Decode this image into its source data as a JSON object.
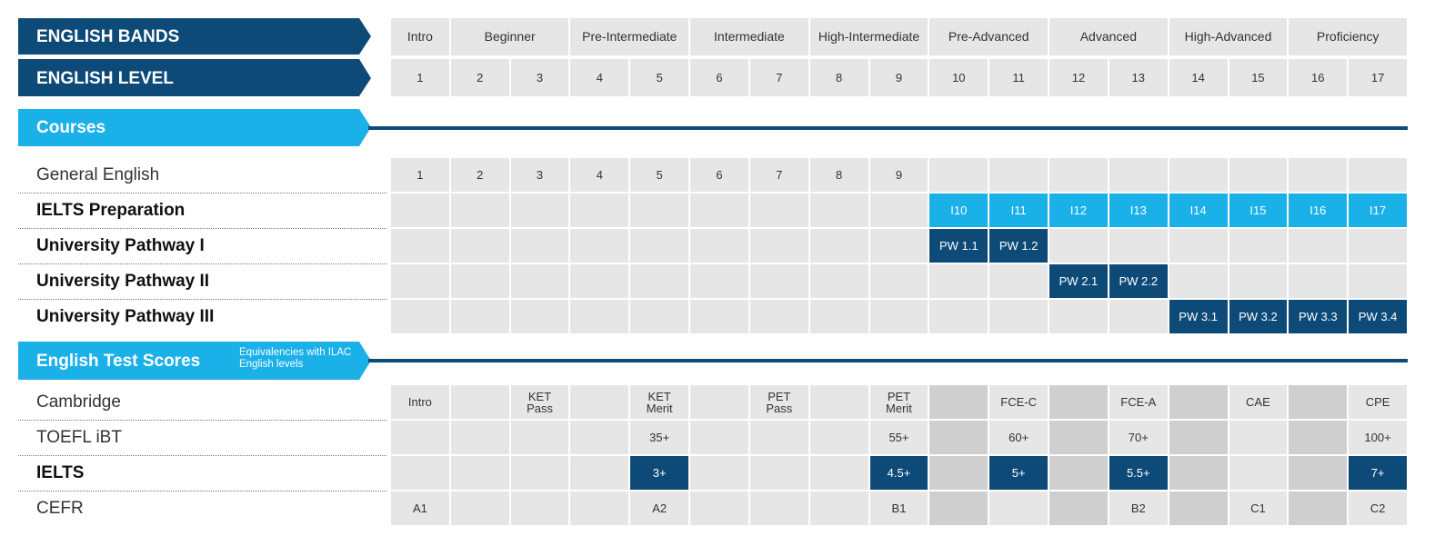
{
  "header": {
    "bands_title": "ENGLISH BANDS",
    "level_title": "ENGLISH LEVEL",
    "bands": [
      {
        "name": "Intro",
        "span": 1
      },
      {
        "name": "Beginner",
        "span": 2
      },
      {
        "name": "Pre-Intermediate",
        "span": 2
      },
      {
        "name": "Intermediate",
        "span": 2
      },
      {
        "name": "High-Intermediate",
        "span": 2
      },
      {
        "name": "Pre-Advanced",
        "span": 2
      },
      {
        "name": "Advanced",
        "span": 2
      },
      {
        "name": "High-Advanced",
        "span": 2
      },
      {
        "name": "Proficiency",
        "span": 2
      }
    ],
    "levels": [
      1,
      2,
      3,
      4,
      5,
      6,
      7,
      8,
      9,
      10,
      11,
      12,
      13,
      14,
      15,
      16,
      17
    ]
  },
  "courses": {
    "title": "Courses",
    "rows": [
      {
        "label": "General English",
        "bold": false,
        "highlight_color": null,
        "cells": [
          1,
          2,
          3,
          4,
          5,
          6,
          7,
          8,
          9,
          null,
          null,
          null,
          null,
          null,
          null,
          null,
          null
        ]
      },
      {
        "label": "IELTS Preparation",
        "bold": true,
        "highlight_color": "#1ab0e8",
        "cells": [
          null,
          null,
          null,
          null,
          null,
          null,
          null,
          null,
          null,
          "I10",
          "I11",
          "I12",
          "I13",
          "I14",
          "I15",
          "I16",
          "I17"
        ]
      },
      {
        "label": "University Pathway I",
        "bold": true,
        "highlight_color": "#0d4a78",
        "cells": [
          null,
          null,
          null,
          null,
          null,
          null,
          null,
          null,
          null,
          "PW 1.1",
          "PW 1.2",
          null,
          null,
          null,
          null,
          null,
          null
        ]
      },
      {
        "label": "University Pathway II",
        "bold": true,
        "highlight_color": "#0d4a78",
        "cells": [
          null,
          null,
          null,
          null,
          null,
          null,
          null,
          null,
          null,
          null,
          null,
          "PW 2.1",
          "PW 2.2",
          null,
          null,
          null,
          null
        ]
      },
      {
        "label": "University Pathway III",
        "bold": true,
        "highlight_color": "#0d4a78",
        "cells": [
          null,
          null,
          null,
          null,
          null,
          null,
          null,
          null,
          null,
          null,
          null,
          null,
          null,
          "PW 3.1",
          "PW 3.2",
          "PW 3.3",
          "PW 3.4"
        ]
      }
    ]
  },
  "tests": {
    "title": "English Test Scores",
    "subtitle": "Equivalencies with ILAC English levels",
    "rows": [
      {
        "label": "Cambridge",
        "bold": false,
        "highlight_color": null,
        "cells": [
          "Intro",
          null,
          [
            "KET",
            "Pass"
          ],
          null,
          [
            "KET",
            "Merit"
          ],
          null,
          [
            "PET",
            "Pass"
          ],
          null,
          [
            "PET",
            "Merit"
          ],
          null,
          "FCE-C",
          null,
          "FCE-A",
          null,
          "CAE",
          null,
          "CPE"
        ]
      },
      {
        "label": "TOEFL iBT",
        "bold": false,
        "highlight_color": null,
        "cells": [
          null,
          null,
          null,
          null,
          "35+",
          null,
          null,
          null,
          "55+",
          null,
          "60+",
          null,
          "70+",
          null,
          null,
          null,
          "100+"
        ]
      },
      {
        "label": "IELTS",
        "bold": true,
        "highlight_color": "#0d4a78",
        "cells": [
          null,
          null,
          null,
          null,
          "3+",
          null,
          null,
          null,
          "4.5+",
          null,
          "5+",
          null,
          "5.5+",
          null,
          null,
          null,
          "7+"
        ]
      },
      {
        "label": "CEFR",
        "bold": false,
        "highlight_color": null,
        "cells": [
          "A1",
          null,
          null,
          null,
          "A2",
          null,
          null,
          null,
          "B1",
          null,
          null,
          null,
          "B2",
          null,
          "C1",
          null,
          "C2"
        ]
      }
    ]
  }
}
